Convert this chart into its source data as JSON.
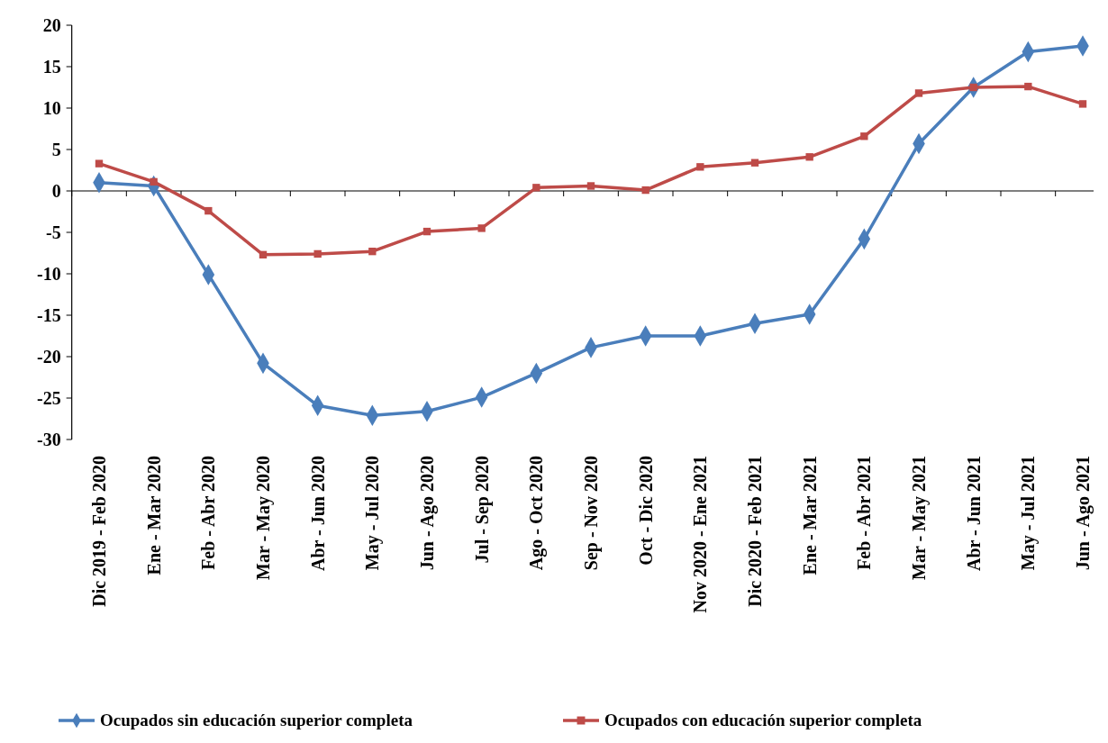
{
  "chart_data": {
    "type": "line",
    "categories": [
      "Dic 2019 - Feb 2020",
      "Ene - Mar 2020",
      "Feb - Abr 2020",
      "Mar - May 2020",
      "Abr - Jun 2020",
      "May - Jul 2020",
      "Jun - Ago 2020",
      "Jul - Sep 2020",
      "Ago - Oct 2020",
      "Sep - Nov 2020",
      "Oct - Dic 2020",
      "Nov 2020 - Ene 2021",
      "Dic 2020 - Feb 2021",
      "Ene - Mar 2021",
      "Feb - Abr 2021",
      "Mar - May 2021",
      "Abr - Jun 2021",
      "May - Jul 2021",
      "Jun - Ago 2021"
    ],
    "series": [
      {
        "name": "Ocupados sin educación superior completa",
        "color": "#4a7ebb",
        "marker": "diamond",
        "values": [
          1.0,
          0.6,
          -10.1,
          -20.8,
          -25.9,
          -27.1,
          -26.6,
          -24.9,
          -22.0,
          -18.9,
          -17.5,
          -17.5,
          -16.0,
          -14.9,
          -5.8,
          5.7,
          12.5,
          16.8,
          17.5
        ]
      },
      {
        "name": "Ocupados con educación superior completa",
        "color": "#be4b48",
        "marker": "square",
        "values": [
          3.3,
          1.1,
          -2.4,
          -7.7,
          -7.6,
          -7.3,
          -4.9,
          -4.5,
          0.4,
          0.6,
          0.1,
          2.9,
          3.4,
          4.1,
          6.6,
          11.8,
          12.5,
          12.6,
          10.5
        ]
      }
    ],
    "ylim": [
      -30,
      20
    ],
    "yticks": [
      -30,
      -25,
      -20,
      -15,
      -10,
      -5,
      0,
      5,
      10,
      15,
      20
    ],
    "legend": "bottom",
    "line_style": "solid"
  }
}
